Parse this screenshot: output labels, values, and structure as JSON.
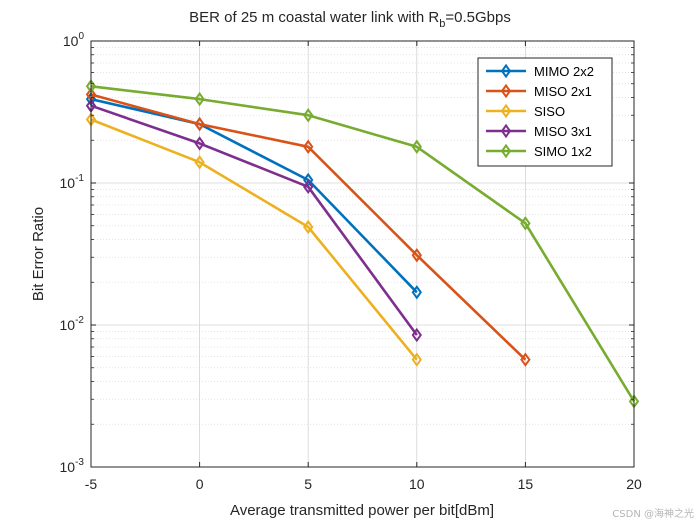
{
  "chart_data": {
    "type": "line",
    "title_parts": {
      "before": "BER of 25 m coastal water link with R",
      "subscript": "b",
      "after": "=0.5Gbps"
    },
    "xlabel": "Average transmitted power per bit[dBm]",
    "ylabel": "Bit Error Ratio",
    "xlim": [
      -5,
      20
    ],
    "ylim": [
      0.001,
      1
    ],
    "yscale": "log",
    "grid": true,
    "minor_grid": true,
    "legend_position": "top-right",
    "x_ticks": [
      {
        "value": -5,
        "label": "-5"
      },
      {
        "value": 0,
        "label": "0"
      },
      {
        "value": 5,
        "label": "5"
      },
      {
        "value": 10,
        "label": "10"
      },
      {
        "value": 15,
        "label": "15"
      },
      {
        "value": 20,
        "label": "20"
      }
    ],
    "y_ticks": [
      {
        "value": 1,
        "base": "10",
        "exponent": "0"
      },
      {
        "value": 0.1,
        "base": "10",
        "exponent": "-1"
      },
      {
        "value": 0.01,
        "base": "10",
        "exponent": "-2"
      },
      {
        "value": 0.001,
        "base": "10",
        "exponent": "-3"
      }
    ],
    "series": [
      {
        "name": "MIMO 2x2",
        "color": "#0072BD",
        "marker": "diamond",
        "x": [
          -5,
          0,
          5,
          10
        ],
        "y": [
          0.39,
          0.26,
          0.105,
          0.017
        ]
      },
      {
        "name": "MISO 2x1",
        "color": "#D95319",
        "marker": "diamond",
        "x": [
          -5,
          0,
          5,
          10,
          15
        ],
        "y": [
          0.42,
          0.26,
          0.18,
          0.031,
          0.0057
        ]
      },
      {
        "name": "SISO",
        "color": "#EDB120",
        "marker": "diamond",
        "x": [
          -5,
          0,
          5,
          10
        ],
        "y": [
          0.28,
          0.14,
          0.049,
          0.0057
        ]
      },
      {
        "name": "MISO 3x1",
        "color": "#7E2F8E",
        "marker": "diamond",
        "x": [
          -5,
          0,
          5,
          10
        ],
        "y": [
          0.35,
          0.19,
          0.094,
          0.0085
        ]
      },
      {
        "name": "SIMO 1x2",
        "color": "#77AC30",
        "marker": "diamond",
        "x": [
          -5,
          0,
          5,
          10,
          15,
          20
        ],
        "y": [
          0.48,
          0.39,
          0.3,
          0.18,
          0.052,
          0.0029
        ]
      }
    ]
  },
  "watermark": "CSDN @海神之光"
}
